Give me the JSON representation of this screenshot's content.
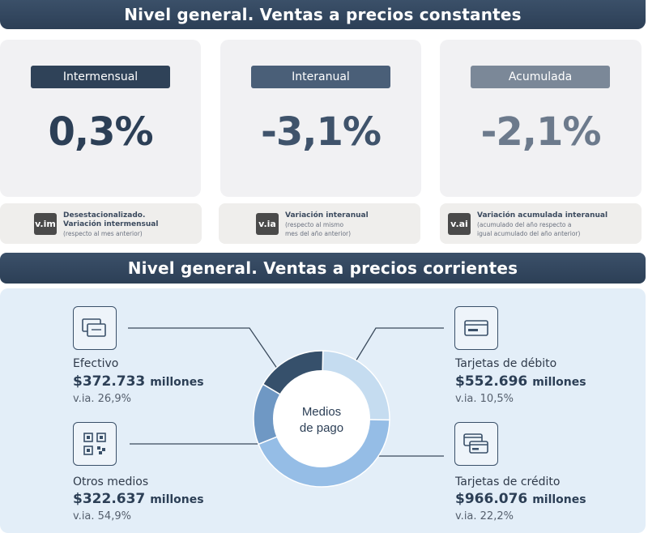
{
  "header1": {
    "title": "Nivel general. Ventas a precios constantes"
  },
  "cards": [
    {
      "label": "Intermensual",
      "value": "0,3%",
      "label_bg": "#2f4258",
      "value_color": "#2c3f56"
    },
    {
      "label": "Interanual",
      "value": "-3,1%",
      "label_bg": "#4a5f78",
      "value_color": "#3f536b"
    },
    {
      "label": "Acumulada",
      "value": "-2,1%",
      "label_bg": "#7b8898",
      "value_color": "#6c7a8c"
    }
  ],
  "descriptions": [
    {
      "badge": "v.im",
      "title_lines": [
        "Desestacionalizado.",
        "Variación intermensual"
      ],
      "sub_lines": [
        "(respecto al mes anterior)"
      ]
    },
    {
      "badge": "v.ia",
      "title_lines": [
        "Variación interanual"
      ],
      "sub_lines": [
        "(respecto al mismo",
        "mes del año anterior)"
      ]
    },
    {
      "badge": "v.ai",
      "title_lines": [
        "Variación acumulada interanual"
      ],
      "sub_lines": [
        "(acumulado del año respecto a",
        "igual acumulado del año anterior)"
      ]
    }
  ],
  "header2": {
    "title": "Nivel general. Ventas a precios corrientes"
  },
  "center": {
    "line1": "Medios",
    "line2": "de pago"
  },
  "payment_methods": {
    "efectivo": {
      "name": "Efectivo",
      "amount": "$372.733",
      "unit": "millones",
      "via": "v.ia. 26,9%",
      "icon": "cash-icon"
    },
    "otros": {
      "name": "Otros medios",
      "amount": "$322.637",
      "unit": "millones",
      "via": "v.ia. 54,9%",
      "icon": "qr-code-icon"
    },
    "debito": {
      "name": "Tarjetas de débito",
      "amount": "$552.696",
      "unit": "millones",
      "via": "v.ia. 10,5%",
      "icon": "debit-card-icon"
    },
    "credito": {
      "name": "Tarjetas de crédito",
      "amount": "$966.076",
      "unit": "millones",
      "via": "v.ia. 22,2%",
      "icon": "credit-cards-icon"
    }
  },
  "donut_shares": {
    "efectivo": 372733,
    "otros": 322637,
    "debito": 552696,
    "credito": 966076
  },
  "colors": {
    "efectivo": "#36506b",
    "otros": "#6f98c4",
    "debito": "#c5dcf0",
    "credito": "#95bde6"
  }
}
